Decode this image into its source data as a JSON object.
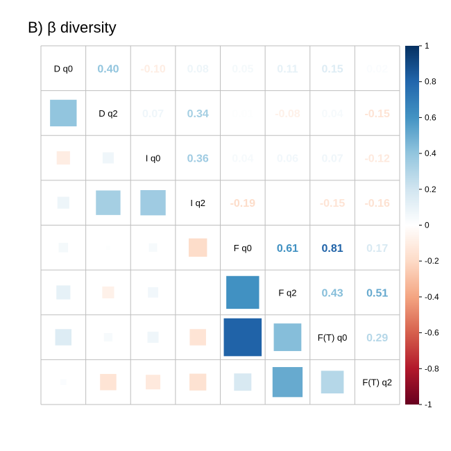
{
  "chart_data": {
    "type": "heatmap",
    "title": "B) β diversity",
    "variables": [
      "D q0",
      "D q2",
      "I q0",
      "I q2",
      "F q0",
      "F q2",
      "F(T) q0",
      "F(T) q2"
    ],
    "matrix": [
      [
        1.0,
        0.4,
        -0.1,
        0.08,
        0.05,
        0.11,
        0.15,
        0.02
      ],
      [
        0.4,
        1.0,
        0.07,
        0.34,
        0.01,
        -0.08,
        0.04,
        -0.15
      ],
      [
        -0.1,
        0.07,
        1.0,
        0.36,
        0.04,
        0.06,
        0.07,
        -0.12
      ],
      [
        0.08,
        0.34,
        0.36,
        1.0,
        -0.19,
        0.0,
        -0.15,
        -0.16
      ],
      [
        0.05,
        0.01,
        0.04,
        -0.19,
        1.0,
        0.61,
        0.81,
        0.17
      ],
      [
        0.11,
        -0.08,
        0.06,
        0.0,
        0.61,
        1.0,
        0.43,
        0.51
      ],
      [
        0.15,
        0.04,
        0.07,
        -0.15,
        0.81,
        0.43,
        1.0,
        0.29
      ],
      [
        0.02,
        -0.15,
        -0.12,
        -0.16,
        0.17,
        0.51,
        0.29,
        1.0
      ]
    ],
    "upper_labels": [
      [
        "0.40",
        "-0.10",
        "0.08",
        "0.05",
        "0.11",
        "0.15",
        "0.02"
      ],
      [
        "0.07",
        "0.34",
        "0.01",
        "-0.08",
        "0.04",
        "-0.15"
      ],
      [
        "0.36",
        "0.04",
        "0.06",
        "0.07",
        "-0.12"
      ],
      [
        "-0.19",
        "0.00",
        "-0.15",
        "-0.16"
      ],
      [
        "0.61",
        "0.81",
        "0.17"
      ],
      [
        "0.43",
        "0.51"
      ],
      [
        "0.29"
      ]
    ],
    "lower": "square",
    "upper": "number",
    "diagonal": "variable names",
    "color_scale": {
      "min": -1,
      "max": 1,
      "ticks": [
        "1",
        "0.8",
        "0.6",
        "0.4",
        "0.2",
        "0",
        "-0.2",
        "-0.4",
        "-0.6",
        "-0.8",
        "-1"
      ],
      "colors": [
        "#67001F",
        "#B2182B",
        "#D6604D",
        "#F4A582",
        "#FDDBC7",
        "#FFFFFF",
        "#D1E5F0",
        "#92C5DE",
        "#4393C3",
        "#2166AC",
        "#053061"
      ]
    },
    "legend_position": "right",
    "grid": true
  }
}
